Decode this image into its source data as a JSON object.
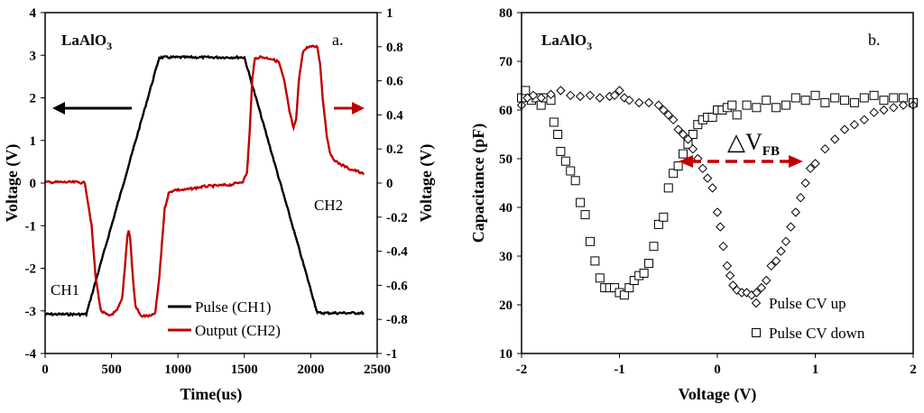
{
  "chart_data": [
    {
      "type": "line",
      "panel_label": "a.",
      "sample_label_parts": [
        "LaAlO",
        "3"
      ],
      "xlabel": "Time(us)",
      "ylabel": "Voltage (V)",
      "y2label": "Voltage (V)",
      "xlim": [
        0,
        2500
      ],
      "ylim": [
        -4,
        4
      ],
      "y2lim": [
        -1,
        1
      ],
      "xticks": [
        "0",
        "500",
        "1000",
        "1500",
        "2000",
        "2500"
      ],
      "yticks": [
        "-4",
        "-3",
        "-2",
        "-1",
        "0",
        "1",
        "2",
        "3",
        "4"
      ],
      "y2ticks": [
        "-1",
        "-0.8",
        "-0.6",
        "-0.4",
        "-0.2",
        "0",
        "0.2",
        "0.4",
        "0.6",
        "0.8",
        "1"
      ],
      "annotations": [
        "CH1",
        "CH2"
      ],
      "series": [
        {
          "name": "Pulse (CH1)",
          "axis": "left",
          "color": "#000000",
          "x": [
            0,
            310,
            860,
            1500,
            2050,
            2400
          ],
          "y": [
            -3.08,
            -3.08,
            2.95,
            2.95,
            -3.05,
            -3.05
          ]
        },
        {
          "name": "Output (CH2)",
          "axis": "right",
          "color": "#c00000",
          "x": [
            0,
            250,
            300,
            350,
            380,
            420,
            480,
            540,
            580,
            600,
            620,
            630,
            640,
            660,
            680,
            720,
            760,
            800,
            830,
            860,
            880,
            900,
            930,
            970,
            1050,
            1200,
            1400,
            1490,
            1520,
            1540,
            1560,
            1580,
            1620,
            1700,
            1760,
            1800,
            1840,
            1870,
            1890,
            1910,
            1940,
            1980,
            2020,
            2050,
            2070,
            2090,
            2120,
            2150,
            2200,
            2250,
            2300,
            2350,
            2400
          ],
          "y": [
            0.005,
            0.005,
            0.0,
            -0.25,
            -0.55,
            -0.75,
            -0.78,
            -0.75,
            -0.68,
            -0.5,
            -0.3,
            -0.28,
            -0.32,
            -0.55,
            -0.72,
            -0.78,
            -0.78,
            -0.78,
            -0.76,
            -0.55,
            -0.35,
            -0.15,
            -0.06,
            -0.04,
            -0.04,
            -0.02,
            -0.01,
            0.01,
            0.06,
            0.3,
            0.62,
            0.73,
            0.74,
            0.73,
            0.71,
            0.6,
            0.42,
            0.32,
            0.37,
            0.6,
            0.77,
            0.8,
            0.8,
            0.8,
            0.7,
            0.5,
            0.28,
            0.16,
            0.12,
            0.1,
            0.08,
            0.07,
            0.05
          ]
        }
      ]
    },
    {
      "type": "scatter",
      "panel_label": "b.",
      "sample_label_parts": [
        "LaAlO",
        "3"
      ],
      "xlabel": "Voltage (V)",
      "ylabel": "Capacitance (pF)",
      "xlim": [
        -2,
        2
      ],
      "ylim": [
        10,
        80
      ],
      "xticks": [
        "-2",
        "-1",
        "0",
        "1",
        "2"
      ],
      "yticks": [
        "10",
        "20",
        "30",
        "40",
        "50",
        "60",
        "70",
        "80"
      ],
      "annotation_parts": [
        "△V",
        "FB"
      ],
      "series": [
        {
          "name": "Pulse CV up",
          "marker": "diamond",
          "x": [
            -2.0,
            -1.94,
            -1.88,
            -1.8,
            -1.7,
            -1.6,
            -1.5,
            -1.4,
            -1.3,
            -1.2,
            -1.1,
            -1.05,
            -1.0,
            -0.95,
            -0.9,
            -0.8,
            -0.7,
            -0.6,
            -0.55,
            -0.5,
            -0.45,
            -0.4,
            -0.35,
            -0.3,
            -0.25,
            -0.2,
            -0.15,
            -0.1,
            -0.05,
            0.0,
            0.03,
            0.06,
            0.1,
            0.13,
            0.16,
            0.2,
            0.25,
            0.3,
            0.35,
            0.4,
            0.45,
            0.5,
            0.55,
            0.6,
            0.65,
            0.7,
            0.75,
            0.8,
            0.85,
            0.9,
            0.95,
            1.0,
            1.1,
            1.2,
            1.3,
            1.4,
            1.5,
            1.6,
            1.7,
            1.8,
            1.9,
            2.0
          ],
          "y": [
            61,
            62.5,
            63,
            62.5,
            63.2,
            64,
            63,
            62.8,
            63,
            62.5,
            62.8,
            63,
            64,
            62.5,
            62,
            61.5,
            61.5,
            61,
            60,
            59,
            58,
            56,
            55,
            54,
            52,
            50,
            48,
            46,
            44,
            39,
            36,
            32,
            28,
            26,
            24,
            23,
            22.5,
            22.5,
            22,
            22.5,
            23.5,
            25,
            28,
            29,
            31,
            33,
            36,
            39,
            42,
            45,
            48,
            49,
            52,
            54,
            56,
            57,
            58,
            59.5,
            60,
            60.5,
            61,
            61
          ]
        },
        {
          "name": "Pulse CV down",
          "marker": "square",
          "x": [
            -2.0,
            -1.96,
            -1.9,
            -1.85,
            -1.8,
            -1.75,
            -1.7,
            -1.67,
            -1.63,
            -1.6,
            -1.55,
            -1.5,
            -1.45,
            -1.4,
            -1.35,
            -1.3,
            -1.25,
            -1.2,
            -1.15,
            -1.1,
            -1.05,
            -1.0,
            -0.95,
            -0.9,
            -0.85,
            -0.8,
            -0.75,
            -0.7,
            -0.65,
            -0.6,
            -0.55,
            -0.5,
            -0.45,
            -0.4,
            -0.35,
            -0.3,
            -0.25,
            -0.2,
            -0.15,
            -0.1,
            -0.05,
            0.0,
            0.05,
            0.1,
            0.15,
            0.2,
            0.3,
            0.4,
            0.5,
            0.6,
            0.7,
            0.8,
            0.9,
            1.0,
            1.1,
            1.2,
            1.3,
            1.4,
            1.5,
            1.6,
            1.7,
            1.8,
            1.9,
            2.0
          ],
          "y": [
            62.5,
            64,
            62,
            62.5,
            61,
            62.5,
            62,
            57.5,
            55,
            51.5,
            49.5,
            47.5,
            45.5,
            41,
            38.5,
            33,
            29,
            25.5,
            23.5,
            23.5,
            23.5,
            22.5,
            22,
            23.5,
            25,
            26,
            26.5,
            28.5,
            32,
            36.5,
            38,
            44,
            47,
            48.5,
            51,
            53,
            55,
            57,
            58,
            58.5,
            58.5,
            60,
            60,
            60.5,
            61,
            59,
            61,
            60.5,
            62,
            60.5,
            61,
            62.5,
            62,
            63,
            61.5,
            62.5,
            62,
            61.5,
            62.5,
            63,
            62,
            62.5,
            62.5,
            61.5
          ]
        }
      ]
    }
  ]
}
